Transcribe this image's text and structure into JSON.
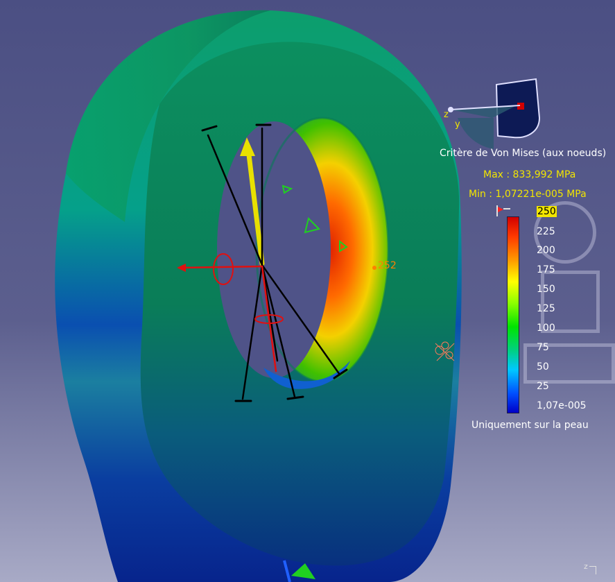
{
  "legend": {
    "title": "Critère de Von Mises (aux noeuds)",
    "max_label": "Max : 833,992 MPa",
    "min_label": "Min : 1,07221e-005 MPa",
    "ticks": [
      "250",
      "225",
      "200",
      "175",
      "150",
      "125",
      "100",
      "75",
      "50",
      "25",
      "1,07e-005"
    ],
    "skin_toggle_label": "Uniquement sur la peau"
  },
  "probe": {
    "value_label": "252"
  },
  "compass": {
    "axis_z": "z",
    "axis_y": "y"
  },
  "corner_axis": {
    "label": "z"
  },
  "colors": {
    "background_top": "#4b4f83",
    "background_bottom": "#a8aac6",
    "highlight": "#f2e600",
    "stress_max": "#d10000",
    "stress_min": "#0000c8"
  }
}
